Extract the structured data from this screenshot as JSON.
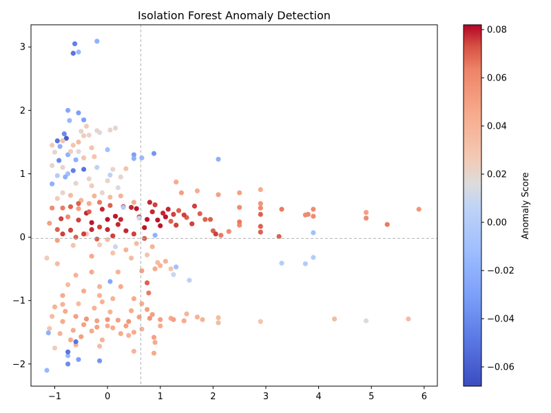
{
  "chart_data": {
    "type": "scatter",
    "title": "Isolation Forest Anomaly Detection",
    "xlabel": "",
    "ylabel": "",
    "xlim": [
      -1.45,
      6.25
    ],
    "ylim": [
      -2.35,
      3.35
    ],
    "xticks": [
      -1,
      0,
      1,
      2,
      3,
      4,
      5,
      6
    ],
    "yticks": [
      -2,
      -1,
      0,
      1,
      2,
      3
    ],
    "grid": false,
    "reference_lines": {
      "vertical_x": 0.63,
      "horizontal_y": -0.02,
      "style": "dashed"
    },
    "colormap": "coolwarm",
    "colorbar": {
      "label": "Anomaly Score",
      "range": [
        -0.068,
        0.082
      ],
      "ticks": [
        -0.06,
        -0.04,
        -0.02,
        0.0,
        0.02,
        0.04,
        0.06,
        0.08
      ],
      "tick_labels": [
        "−0.06",
        "−0.04",
        "−0.02",
        "0.00",
        "0.02",
        "0.04",
        "0.06",
        "0.08"
      ]
    },
    "points": [
      [
        -0.62,
        3.05,
        -0.045
      ],
      [
        -0.55,
        2.92,
        -0.015
      ],
      [
        -0.65,
        2.9,
        -0.05
      ],
      [
        -0.2,
        3.09,
        -0.02
      ],
      [
        -0.75,
        2.0,
        -0.025
      ],
      [
        -0.55,
        1.96,
        -0.03
      ],
      [
        -0.45,
        1.85,
        -0.03
      ],
      [
        -0.72,
        1.84,
        -0.015
      ],
      [
        -0.95,
        1.52,
        -0.05
      ],
      [
        -0.78,
        1.56,
        -0.06
      ],
      [
        -0.82,
        1.63,
        -0.04
      ],
      [
        -0.9,
        1.43,
        -0.02
      ],
      [
        -0.6,
        1.22,
        -0.02
      ],
      [
        -0.92,
        1.21,
        -0.04
      ],
      [
        -0.45,
        1.07,
        -0.05
      ],
      [
        -0.65,
        1.05,
        -0.045
      ],
      [
        -0.75,
        1.0,
        -0.01
      ],
      [
        -1.05,
        0.84,
        -0.02
      ],
      [
        -0.8,
        0.95,
        -0.02
      ],
      [
        0.5,
        1.3,
        -0.03
      ],
      [
        0.88,
        1.32,
        -0.035
      ],
      [
        2.1,
        1.23,
        -0.02
      ],
      [
        0.65,
        1.25,
        -0.015
      ],
      [
        0.5,
        1.24,
        -0.02
      ],
      [
        -0.15,
        1.65,
        0.015
      ],
      [
        -0.2,
        1.68,
        0.02
      ],
      [
        0.05,
        1.69,
        0.02
      ],
      [
        0.15,
        1.72,
        0.02
      ],
      [
        -0.5,
        1.67,
        0.02
      ],
      [
        -0.35,
        1.61,
        0.02
      ],
      [
        -0.4,
        1.75,
        0.025
      ],
      [
        -0.3,
        1.41,
        0.03
      ],
      [
        -0.65,
        1.45,
        0.03
      ],
      [
        -1.0,
        1.34,
        0.02
      ],
      [
        -1.05,
        1.13,
        0.02
      ],
      [
        -0.85,
        1.1,
        0.02
      ],
      [
        -0.35,
        0.92,
        0.02
      ],
      [
        0.05,
        0.98,
        0.005
      ],
      [
        0.2,
        0.78,
        0.015
      ],
      [
        0.35,
        1.08,
        0.03
      ],
      [
        -0.1,
        0.7,
        0.02
      ],
      [
        -0.35,
        0.53,
        0.045
      ],
      [
        -0.55,
        0.45,
        0.05
      ],
      [
        -0.75,
        0.32,
        0.06
      ],
      [
        -1.1,
        0.22,
        0.05
      ],
      [
        -0.88,
        0.29,
        0.075
      ],
      [
        -0.55,
        0.27,
        0.075
      ],
      [
        -0.3,
        0.23,
        0.08
      ],
      [
        -0.15,
        0.16,
        0.075
      ],
      [
        0.0,
        0.28,
        0.08
      ],
      [
        0.15,
        0.33,
        0.08
      ],
      [
        0.3,
        0.48,
        0.078
      ],
      [
        0.45,
        0.47,
        0.078
      ],
      [
        0.6,
        0.32,
        0.075
      ],
      [
        0.75,
        0.28,
        0.08
      ],
      [
        0.9,
        0.51,
        0.075
      ],
      [
        1.05,
        0.38,
        0.078
      ],
      [
        1.2,
        0.25,
        0.07
      ],
      [
        1.35,
        0.42,
        0.07
      ],
      [
        1.5,
        0.31,
        0.07
      ],
      [
        1.65,
        0.49,
        0.075
      ],
      [
        1.85,
        0.28,
        0.07
      ],
      [
        2.0,
        0.1,
        0.07
      ],
      [
        2.15,
        0.03,
        0.065
      ],
      [
        2.3,
        0.09,
        0.06
      ],
      [
        2.5,
        0.19,
        0.06
      ],
      [
        2.5,
        0.47,
        0.06
      ],
      [
        2.9,
        0.36,
        0.07
      ],
      [
        2.9,
        0.08,
        0.07
      ],
      [
        3.25,
        0.01,
        0.07
      ],
      [
        3.3,
        0.44,
        0.065
      ],
      [
        3.75,
        0.35,
        0.06
      ],
      [
        3.9,
        0.44,
        0.06
      ],
      [
        3.9,
        0.33,
        0.06
      ],
      [
        4.9,
        0.39,
        0.05
      ],
      [
        4.9,
        0.3,
        0.06
      ],
      [
        5.3,
        0.2,
        0.065
      ],
      [
        5.9,
        0.44,
        0.055
      ],
      [
        1.7,
        0.73,
        0.045
      ],
      [
        2.1,
        0.67,
        0.05
      ],
      [
        2.5,
        0.7,
        0.05
      ],
      [
        2.9,
        0.75,
        0.045
      ],
      [
        1.4,
        0.7,
        0.05
      ],
      [
        1.3,
        0.87,
        0.045
      ],
      [
        -0.4,
        0.05,
        0.03
      ],
      [
        -0.15,
        -0.12,
        0.025
      ],
      [
        0.1,
        -0.25,
        0.03
      ],
      [
        0.45,
        -0.33,
        0.035
      ],
      [
        0.75,
        -0.28,
        0.03
      ],
      [
        0.95,
        -0.4,
        0.035
      ],
      [
        1.2,
        -0.5,
        0.03
      ],
      [
        1.3,
        -0.47,
        -0.01
      ],
      [
        1.55,
        -0.68,
        0.005
      ],
      [
        1.25,
        -0.59,
        0.01
      ],
      [
        0.0,
        -0.04,
        0.035
      ],
      [
        0.2,
        -0.55,
        0.04
      ],
      [
        -0.3,
        -0.55,
        0.045
      ],
      [
        -0.6,
        -0.6,
        0.04
      ],
      [
        -0.95,
        -0.42,
        0.035
      ],
      [
        -1.15,
        -0.33,
        0.025
      ],
      [
        -0.75,
        -0.75,
        0.035
      ],
      [
        -0.15,
        -0.78,
        0.04
      ],
      [
        0.25,
        -0.78,
        0.045
      ],
      [
        0.65,
        -0.53,
        0.05
      ],
      [
        0.75,
        -0.72,
        0.07
      ],
      [
        0.78,
        -0.88,
        0.065
      ],
      [
        0.65,
        -1.05,
        0.045
      ],
      [
        -0.15,
        -0.92,
        0.04
      ],
      [
        -0.45,
        -0.85,
        0.045
      ],
      [
        -0.85,
        -0.92,
        0.045
      ],
      [
        3.3,
        -0.41,
        0.0
      ],
      [
        3.75,
        -0.42,
        0.0
      ],
      [
        3.9,
        -0.32,
        0.0
      ],
      [
        3.9,
        0.07,
        -0.01
      ],
      [
        0.9,
        0.03,
        -0.02
      ],
      [
        -1.0,
        -1.1,
        0.04
      ],
      [
        -0.8,
        -1.17,
        0.045
      ],
      [
        -0.6,
        -1.25,
        0.05
      ],
      [
        -0.4,
        -1.29,
        0.055
      ],
      [
        -0.2,
        -1.32,
        0.05
      ],
      [
        0.0,
        -1.3,
        0.055
      ],
      [
        0.2,
        -1.31,
        0.05
      ],
      [
        0.4,
        -1.33,
        0.055
      ],
      [
        0.6,
        -1.26,
        0.05
      ],
      [
        0.8,
        -1.28,
        0.055
      ],
      [
        1.0,
        -1.3,
        0.05
      ],
      [
        1.2,
        -1.28,
        0.045
      ],
      [
        1.5,
        -1.21,
        0.04
      ],
      [
        1.7,
        -1.26,
        0.04
      ],
      [
        2.1,
        -1.35,
        0.035
      ],
      [
        2.1,
        -1.27,
        0.035
      ],
      [
        2.9,
        -1.33,
        0.03
      ],
      [
        4.3,
        -1.29,
        0.035
      ],
      [
        4.9,
        -1.32,
        0.015
      ],
      [
        5.7,
        -1.29,
        0.035
      ],
      [
        -1.1,
        -1.44,
        0.03
      ],
      [
        -0.9,
        -1.52,
        0.04
      ],
      [
        -0.7,
        -1.62,
        0.045
      ],
      [
        -0.5,
        -1.57,
        0.05
      ],
      [
        -0.3,
        -1.48,
        0.045
      ],
      [
        -0.1,
        -1.62,
        0.04
      ],
      [
        0.1,
        -1.43,
        0.045
      ],
      [
        0.35,
        -1.4,
        0.05
      ],
      [
        0.5,
        -1.5,
        0.045
      ],
      [
        0.88,
        -1.58,
        0.05
      ],
      [
        0.88,
        -1.83,
        0.045
      ],
      [
        0.5,
        -1.8,
        0.04
      ],
      [
        -0.15,
        -1.72,
        0.035
      ],
      [
        -0.6,
        -1.7,
        0.04
      ],
      [
        -1.0,
        -1.75,
        0.025
      ],
      [
        -0.75,
        -1.87,
        -0.015
      ],
      [
        -0.75,
        -1.81,
        -0.05
      ],
      [
        -0.75,
        -2.0,
        -0.04
      ],
      [
        -0.55,
        -1.93,
        -0.03
      ],
      [
        -0.15,
        -1.95,
        -0.035
      ],
      [
        -1.15,
        -2.1,
        -0.015
      ],
      [
        -1.12,
        -1.51,
        -0.02
      ],
      [
        -0.6,
        -1.65,
        -0.05
      ],
      [
        0.05,
        -0.7,
        -0.025
      ],
      [
        -0.85,
        0.7,
        0.02
      ],
      [
        -0.95,
        0.61,
        0.025
      ],
      [
        -0.7,
        0.66,
        0.035
      ],
      [
        -0.5,
        0.58,
        0.04
      ],
      [
        -0.25,
        0.65,
        0.04
      ],
      [
        0.05,
        0.63,
        0.035
      ],
      [
        0.25,
        0.65,
        0.04
      ],
      [
        0.5,
        0.55,
        0.045
      ],
      [
        -0.6,
        0.85,
        0.02
      ],
      [
        -0.3,
        0.81,
        0.025
      ],
      [
        0.0,
        0.89,
        0.02
      ],
      [
        -0.95,
        0.12,
        0.07
      ],
      [
        -0.7,
        0.11,
        0.075
      ],
      [
        -0.45,
        0.05,
        0.075
      ],
      [
        -0.2,
        -0.03,
        0.07
      ],
      [
        0.1,
        0.02,
        0.075
      ],
      [
        0.35,
        0.1,
        0.078
      ],
      [
        0.7,
        0.15,
        0.08
      ],
      [
        1.0,
        0.18,
        0.08
      ],
      [
        1.3,
        0.19,
        0.075
      ],
      [
        1.6,
        0.21,
        0.075
      ],
      [
        -0.4,
        0.38,
        0.078
      ],
      [
        -0.1,
        0.44,
        0.078
      ],
      [
        0.2,
        0.2,
        0.078
      ],
      [
        0.55,
        0.45,
        0.08
      ],
      [
        0.85,
        0.4,
        0.078
      ],
      [
        1.15,
        0.44,
        0.078
      ],
      [
        -0.2,
        1.1,
        0.005
      ],
      [
        -0.55,
        1.35,
        0.015
      ],
      [
        0.0,
        1.38,
        -0.01
      ],
      [
        -0.75,
        1.3,
        -0.02
      ],
      [
        -0.95,
        0.97,
        0.0
      ],
      [
        0.3,
        0.47,
        0.0
      ],
      [
        0.6,
        0.3,
        0.01
      ],
      [
        0.15,
        -0.15,
        0.01
      ],
      [
        -0.65,
        -0.13,
        0.03
      ],
      [
        -0.95,
        -0.05,
        0.05
      ],
      [
        -0.3,
        -0.3,
        0.045
      ],
      [
        0.35,
        -0.2,
        0.04
      ],
      [
        0.85,
        -0.15,
        0.04
      ],
      [
        -0.55,
        -1.05,
        0.035
      ],
      [
        -0.25,
        -1.12,
        0.04
      ],
      [
        0.05,
        -1.18,
        0.04
      ],
      [
        0.45,
        -1.16,
        0.045
      ],
      [
        0.75,
        -1.14,
        0.05
      ],
      [
        1.0,
        -1.4,
        0.045
      ],
      [
        0.65,
        -1.45,
        0.04
      ],
      [
        0.25,
        -1.52,
        0.045
      ],
      [
        -0.2,
        -1.42,
        0.05
      ],
      [
        -0.45,
        -1.38,
        0.05
      ],
      [
        -0.85,
        -1.33,
        0.045
      ],
      [
        -1.05,
        -1.25,
        0.035
      ],
      [
        -0.65,
        -1.47,
        0.045
      ],
      [
        0.0,
        -1.4,
        0.045
      ],
      [
        0.4,
        -1.55,
        0.04
      ],
      [
        0.9,
        -1.66,
        0.045
      ],
      [
        1.25,
        -1.3,
        0.05
      ],
      [
        1.45,
        -1.32,
        0.045
      ],
      [
        1.8,
        -1.3,
        0.04
      ],
      [
        0.1,
        -0.97,
        0.04
      ],
      [
        -0.1,
        -1.02,
        0.04
      ],
      [
        -0.85,
        -1.06,
        0.04
      ],
      [
        0.5,
        -0.97,
        0.045
      ],
      [
        0.85,
        -1.22,
        0.05
      ],
      [
        0.9,
        -0.5,
        0.045
      ],
      [
        1.0,
        -0.45,
        0.04
      ],
      [
        1.1,
        -0.38,
        0.04
      ],
      [
        0.55,
        -0.1,
        0.035
      ],
      [
        0.8,
        0.55,
        0.078
      ],
      [
        0.95,
        0.27,
        0.08
      ],
      [
        1.1,
        0.32,
        0.08
      ],
      [
        1.25,
        0.36,
        0.075
      ],
      [
        1.45,
        0.35,
        0.075
      ],
      [
        1.75,
        0.37,
        0.07
      ],
      [
        1.95,
        0.28,
        0.07
      ],
      [
        2.05,
        0.05,
        0.075
      ],
      [
        2.5,
        0.24,
        0.065
      ],
      [
        2.9,
        0.17,
        0.07
      ],
      [
        2.9,
        0.46,
        0.06
      ],
      [
        2.9,
        0.53,
        0.055
      ],
      [
        3.8,
        0.36,
        0.06
      ],
      [
        -0.85,
        0.46,
        0.065
      ],
      [
        -0.7,
        0.48,
        0.07
      ],
      [
        -0.55,
        0.53,
        0.07
      ],
      [
        -0.35,
        0.4,
        0.07
      ],
      [
        -0.15,
        0.55,
        0.065
      ],
      [
        0.05,
        0.5,
        0.07
      ],
      [
        -1.05,
        0.46,
        0.06
      ],
      [
        -0.85,
        0.05,
        0.075
      ],
      [
        -0.6,
        0.0,
        0.07
      ],
      [
        -0.3,
        0.12,
        0.078
      ],
      [
        0.0,
        0.12,
        0.078
      ],
      [
        0.25,
        0.28,
        0.078
      ],
      [
        0.5,
        0.05,
        0.075
      ],
      [
        0.7,
        -0.02,
        0.07
      ],
      [
        -0.45,
        1.25,
        0.03
      ],
      [
        -0.55,
        1.5,
        0.035
      ],
      [
        -0.25,
        1.27,
        0.03
      ],
      [
        0.1,
        1.07,
        0.02
      ],
      [
        0.25,
        0.95,
        0.02
      ],
      [
        -1.05,
        1.45,
        0.025
      ],
      [
        -0.85,
        1.52,
        0.03
      ],
      [
        -0.45,
        1.6,
        0.025
      ],
      [
        -0.7,
        1.35,
        0.025
      ]
    ]
  }
}
